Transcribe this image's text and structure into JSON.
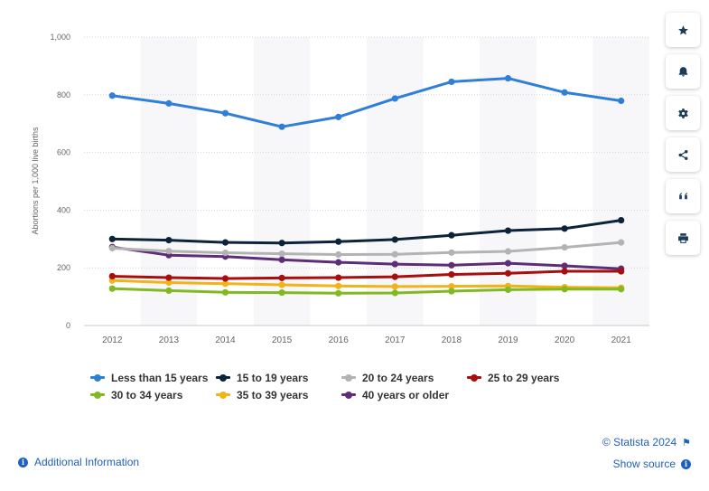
{
  "chart_data": {
    "type": "line",
    "title": "",
    "xlabel": "",
    "ylabel": "Abortions per 1,000 live births",
    "ylim": [
      0,
      1000
    ],
    "yticks": [
      0,
      200,
      400,
      600,
      800,
      1000
    ],
    "ytick_labels": [
      "0",
      "200",
      "400",
      "600",
      "800",
      "1,000"
    ],
    "categories": [
      "2012",
      "2013",
      "2014",
      "2015",
      "2016",
      "2017",
      "2018",
      "2019",
      "2020",
      "2021"
    ],
    "series": [
      {
        "name": "Less than 15 years",
        "color": "#2f7ed8",
        "values": [
          797,
          770,
          736,
          689,
          723,
          787,
          845,
          857,
          808,
          779
        ]
      },
      {
        "name": "15 to 19 years",
        "color": "#0d233a",
        "values": [
          300,
          296,
          288,
          286,
          291,
          298,
          313,
          329,
          336,
          365
        ]
      },
      {
        "name": "20 to 24 years",
        "color": "#b3b3b3",
        "values": [
          268,
          258,
          252,
          249,
          246,
          247,
          253,
          257,
          271,
          288
        ]
      },
      {
        "name": "25 to 29 years",
        "color": "#a80e0e",
        "values": [
          171,
          166,
          163,
          165,
          166,
          169,
          177,
          181,
          188,
          188
        ]
      },
      {
        "name": "30 to 34 years",
        "color": "#80b921",
        "values": [
          128,
          121,
          115,
          114,
          112,
          113,
          119,
          124,
          126,
          126
        ]
      },
      {
        "name": "35 to 39 years",
        "color": "#f2b218",
        "values": [
          156,
          149,
          145,
          141,
          137,
          135,
          136,
          137,
          133,
          131
        ]
      },
      {
        "name": "40 years or older",
        "color": "#5e2d79",
        "values": [
          272,
          244,
          239,
          228,
          219,
          213,
          209,
          216,
          207,
          197
        ]
      }
    ],
    "legend_position": "bottom"
  },
  "credit": "© Statista 2024",
  "additional_info": "Additional Information",
  "show_source": "Show source",
  "sidebar_icons": [
    "star-icon",
    "bell-icon",
    "gear-icon",
    "share-icon",
    "quote-icon",
    "print-icon"
  ]
}
